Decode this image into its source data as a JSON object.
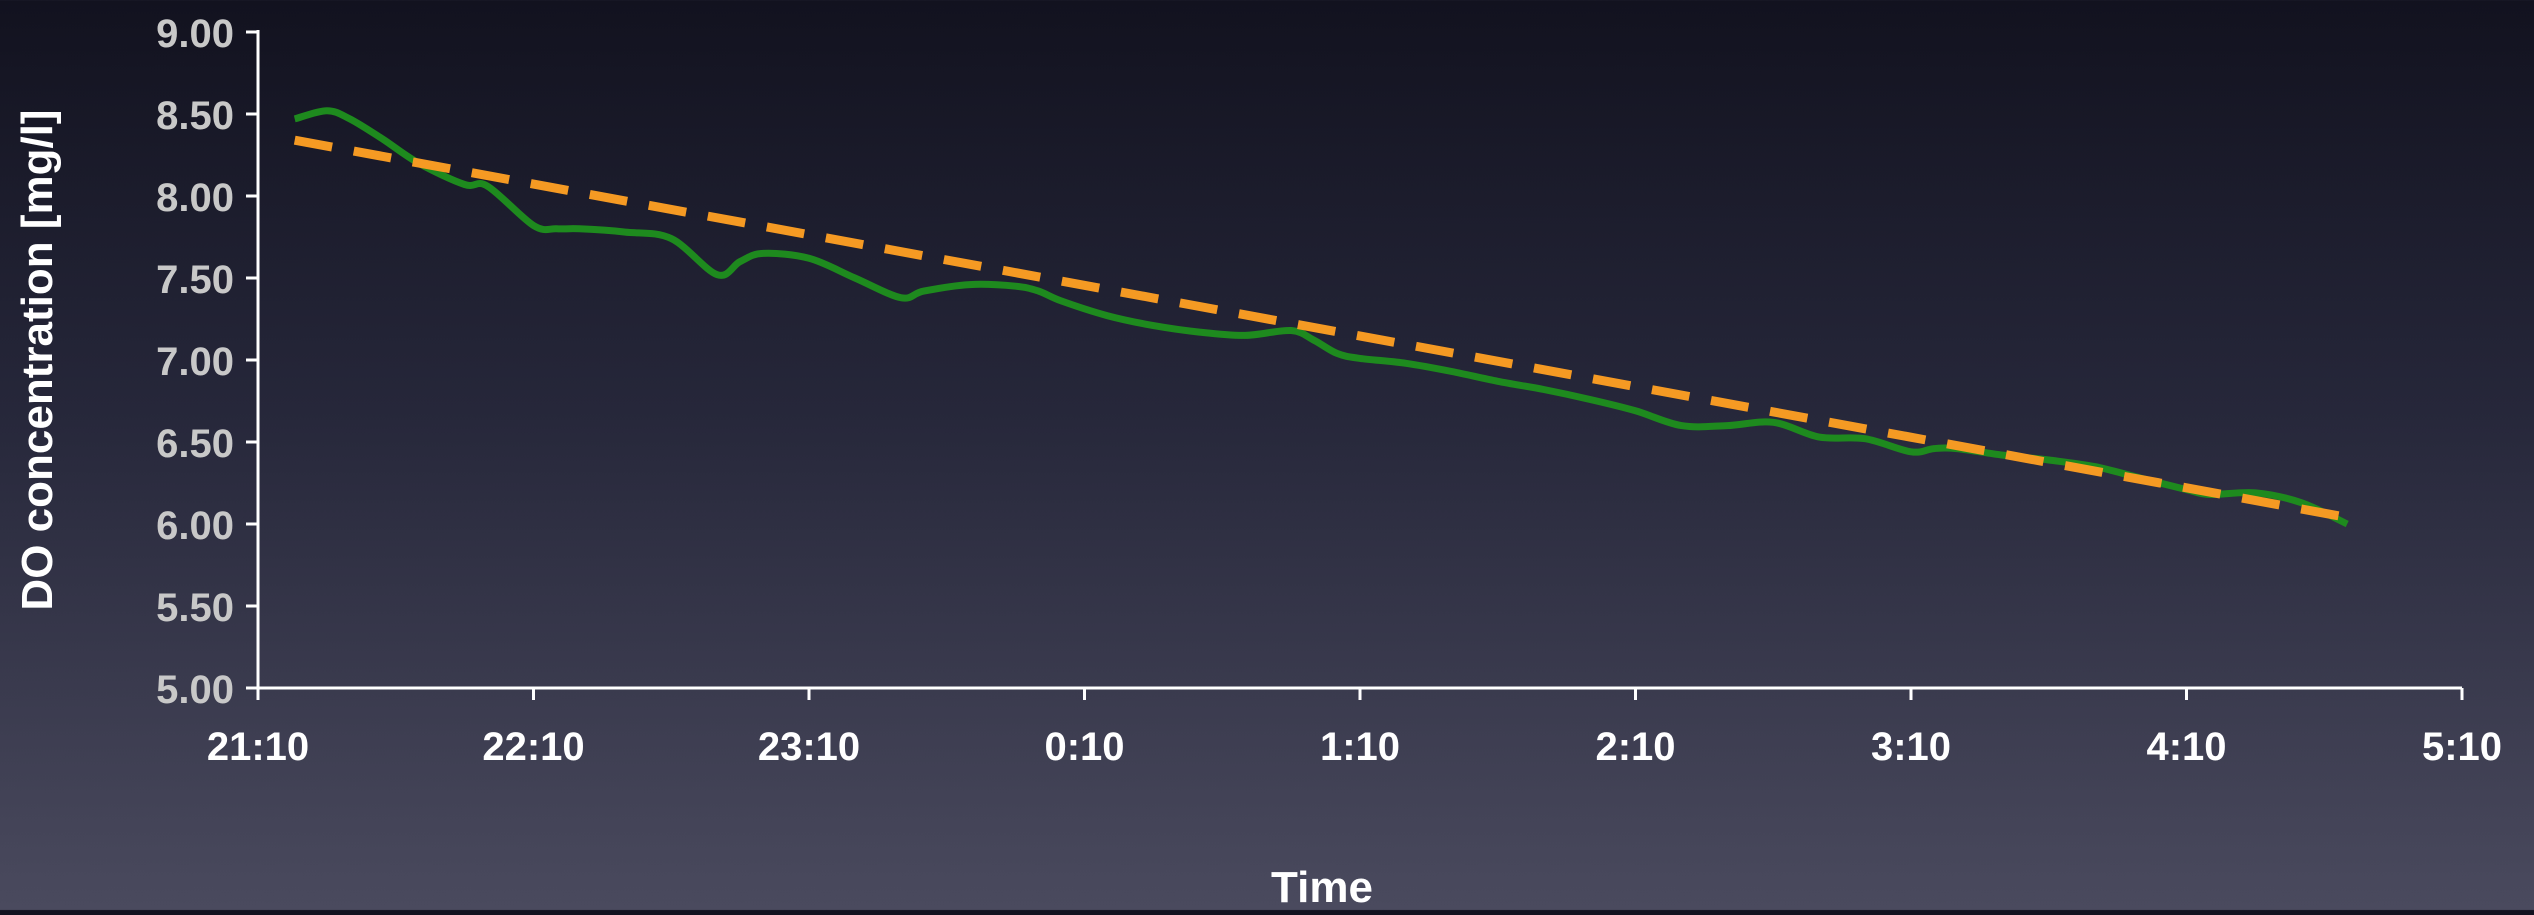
{
  "chart_data": {
    "type": "line",
    "title": "",
    "xlabel": "Time",
    "ylabel": "DO concentration [mg/l]",
    "ylim": [
      5.0,
      9.0
    ],
    "xlim": [
      "21:10",
      "5:10"
    ],
    "y_ticks": [
      "5.00",
      "5.50",
      "6.00",
      "6.50",
      "7.00",
      "7.50",
      "8.00",
      "8.50",
      "9.00"
    ],
    "x_ticks": [
      "21:10",
      "22:10",
      "23:10",
      "0:10",
      "1:10",
      "2:10",
      "3:10",
      "4:10",
      "5:10"
    ],
    "grid": false,
    "legend": "none",
    "series": [
      {
        "style": "solid",
        "color": "#1e8a1e",
        "x": [
          "21:18",
          "21:25",
          "21:30",
          "21:37",
          "21:45",
          "21:55",
          "22:00",
          "22:10",
          "22:15",
          "22:20",
          "22:30",
          "22:40",
          "22:50",
          "22:55",
          "23:00",
          "23:10",
          "23:20",
          "23:30",
          "23:35",
          "23:45",
          "23:55",
          "0:00",
          "0:05",
          "0:15",
          "0:25",
          "0:35",
          "0:45",
          "0:55",
          "1:00",
          "1:05",
          "1:10",
          "1:20",
          "1:30",
          "1:40",
          "1:50",
          "2:00",
          "2:10",
          "2:20",
          "2:30",
          "2:40",
          "2:50",
          "3:00",
          "3:10",
          "3:15",
          "3:20",
          "3:30",
          "3:40",
          "3:50",
          "4:00",
          "4:10",
          "4:15",
          "4:25",
          "4:35",
          "4:45"
        ],
        "values": [
          8.47,
          8.52,
          8.47,
          8.35,
          8.2,
          8.07,
          8.06,
          7.82,
          7.8,
          7.8,
          7.78,
          7.74,
          7.52,
          7.6,
          7.65,
          7.62,
          7.5,
          7.38,
          7.42,
          7.46,
          7.45,
          7.42,
          7.36,
          7.27,
          7.21,
          7.17,
          7.15,
          7.18,
          7.12,
          7.04,
          7.01,
          6.98,
          6.93,
          6.87,
          6.82,
          6.76,
          6.69,
          6.6,
          6.6,
          6.62,
          6.53,
          6.52,
          6.44,
          6.46,
          6.46,
          6.42,
          6.39,
          6.35,
          6.28,
          6.21,
          6.18,
          6.19,
          6.13,
          6.0
        ]
      },
      {
        "style": "dashed",
        "color": "#f59a23",
        "x": [
          "21:18",
          "4:45"
        ],
        "values": [
          8.34,
          6.04
        ]
      }
    ]
  }
}
